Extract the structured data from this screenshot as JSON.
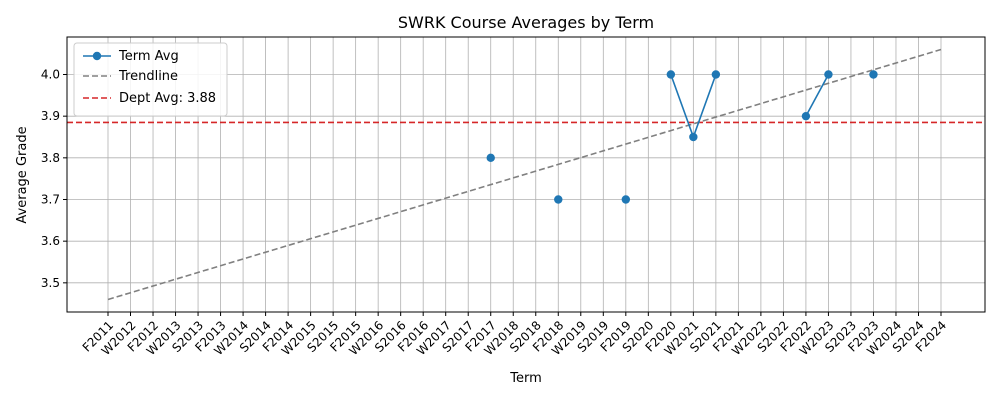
{
  "chart_data": {
    "type": "line",
    "title": "SWRK Course Averages by Term",
    "xlabel": "Term",
    "ylabel": "Average Grade",
    "ylim": [
      3.43,
      4.09
    ],
    "yticks": [
      3.5,
      3.6,
      3.7,
      3.8,
      3.9,
      4.0
    ],
    "ytick_labels": [
      "3.5",
      "3.6",
      "3.7",
      "3.8",
      "3.9",
      "4.0"
    ],
    "grid": true,
    "legend_position": "top-left",
    "categories": [
      "F2011",
      "W2012",
      "F2012",
      "W2013",
      "S2013",
      "F2013",
      "W2014",
      "S2014",
      "F2014",
      "W2015",
      "S2015",
      "F2015",
      "W2016",
      "S2016",
      "F2016",
      "W2017",
      "S2017",
      "F2017",
      "W2018",
      "S2018",
      "F2018",
      "W2019",
      "S2019",
      "F2019",
      "S2020",
      "F2020",
      "W2021",
      "S2021",
      "F2021",
      "W2022",
      "S2022",
      "F2022",
      "W2023",
      "S2023",
      "F2023",
      "W2024",
      "S2024",
      "F2024"
    ],
    "series": [
      {
        "name": "Term Avg",
        "kind": "line-markers",
        "color": "#1f77b4",
        "values": [
          null,
          null,
          null,
          null,
          null,
          null,
          null,
          null,
          null,
          null,
          null,
          null,
          null,
          null,
          null,
          null,
          null,
          3.8,
          null,
          null,
          3.7,
          null,
          null,
          3.7,
          null,
          4.0,
          3.85,
          4.0,
          null,
          null,
          null,
          3.9,
          4.0,
          null,
          4.0,
          null,
          null,
          null
        ]
      },
      {
        "name": "Trendline",
        "kind": "dashed-line",
        "color": "#808080",
        "x_start": "F2011",
        "y_start": 3.46,
        "x_end": "F2024",
        "y_end": 4.06
      },
      {
        "name": "Dept Avg: 3.88",
        "kind": "horizontal-line",
        "color": "#d62728",
        "value": 3.885
      }
    ]
  }
}
